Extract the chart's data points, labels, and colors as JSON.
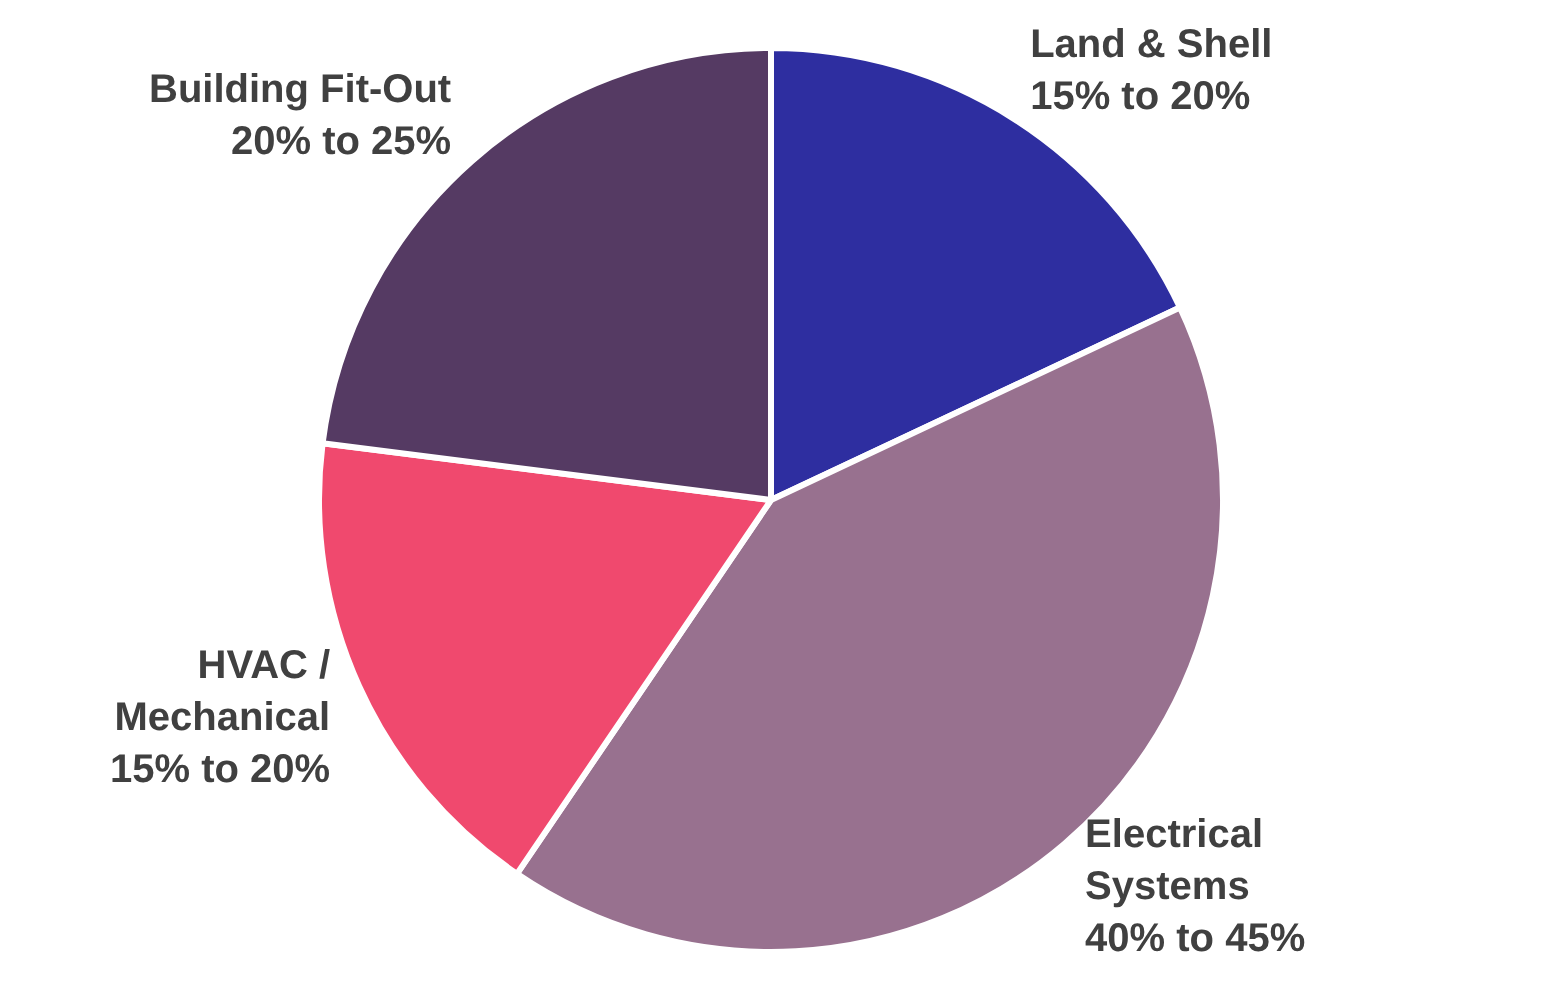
{
  "chart_data": {
    "type": "pie",
    "categories": [
      "Land & Shell",
      "Electrical Systems",
      "HVAC / Mechanical",
      "Building Fit-Out"
    ],
    "values": [
      18,
      41.5,
      17.5,
      23
    ],
    "annotations": [
      "15% to 20%",
      "40% to 45%",
      "15% to 20%",
      "20% to 25%"
    ],
    "colors": [
      "#2e2ea0",
      "#98718f",
      "#f0496e",
      "#553a63"
    ],
    "legend": false
  }
}
